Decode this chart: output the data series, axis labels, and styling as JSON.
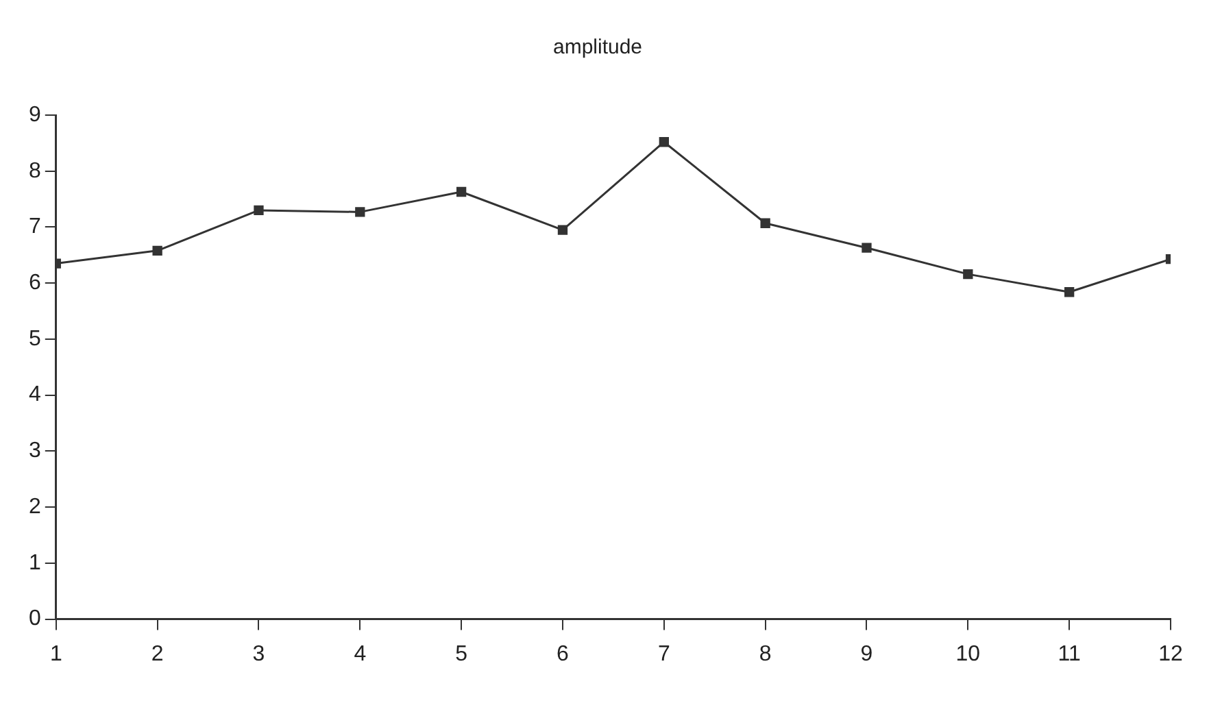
{
  "chart_data": {
    "type": "line",
    "title": "amplitude",
    "x": [
      1,
      2,
      3,
      4,
      5,
      6,
      7,
      8,
      9,
      10,
      11,
      12
    ],
    "series": [
      {
        "color": "#333333",
        "values": [
          6.35,
          6.58,
          7.3,
          7.27,
          7.63,
          6.95,
          8.52,
          7.07,
          6.63,
          6.16,
          5.84,
          6.43
        ]
      }
    ],
    "xlim": [
      1,
      12
    ],
    "xticks": [
      1,
      2,
      3,
      4,
      5,
      6,
      7,
      8,
      9,
      10,
      11,
      12
    ],
    "ylim": [
      0,
      9
    ],
    "yticks": [
      0,
      1,
      2,
      3,
      4,
      5,
      6,
      7,
      8,
      9
    ],
    "grid": false,
    "legend": false,
    "marker": "square",
    "line_style": "solid"
  }
}
